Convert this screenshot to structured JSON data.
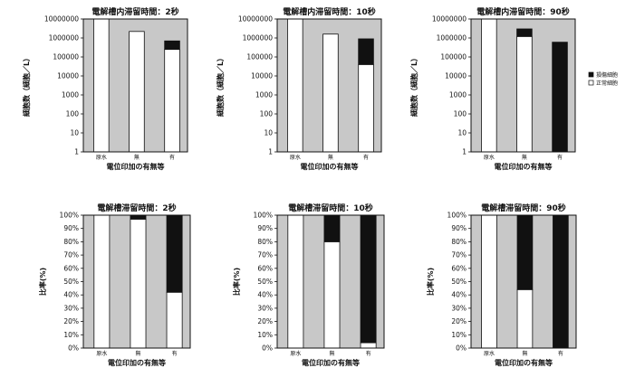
{
  "legend": {
    "damaged": "損傷細胞",
    "normal": "正常細胞",
    "colors": {
      "damaged": "#111111",
      "normal": "#ffffff",
      "background": "#c8c8c8"
    }
  },
  "chart_data": [
    {
      "type": "bar",
      "stacked": true,
      "yscale": "log",
      "title": "電解槽内滞留時間：2秒",
      "xlabel": "電位印加の有無等",
      "ylabel": "細胞数（細胞／L）",
      "categories": [
        "原水",
        "無",
        "有"
      ],
      "ylim": [
        1,
        10000000
      ],
      "yticks": [
        "1",
        "10",
        "100",
        "1000",
        "10000",
        "100000",
        "1000000",
        "10000000"
      ],
      "series": [
        {
          "name": "正常細胞",
          "values": [
            10000000,
            2200000,
            250000
          ]
        },
        {
          "name": "損傷細胞",
          "values": [
            0,
            0,
            450000
          ]
        }
      ]
    },
    {
      "type": "bar",
      "stacked": true,
      "yscale": "log",
      "title": "電解槽内滞留時間：10秒",
      "xlabel": "電位印加の有無等",
      "ylabel": "細胞数（細胞／L）",
      "categories": [
        "原水",
        "無",
        "有"
      ],
      "ylim": [
        1,
        10000000
      ],
      "yticks": [
        "1",
        "10",
        "100",
        "1000",
        "10000",
        "100000",
        "1000000",
        "10000000"
      ],
      "series": [
        {
          "name": "正常細胞",
          "values": [
            10000000,
            1600000,
            40000
          ]
        },
        {
          "name": "損傷細胞",
          "values": [
            0,
            0,
            860000
          ]
        }
      ]
    },
    {
      "type": "bar",
      "stacked": true,
      "yscale": "log",
      "title": "電解槽内滞留時間：90秒",
      "xlabel": "電位印加の有無等",
      "ylabel": "細胞数（細胞／L）",
      "categories": [
        "原水",
        "無",
        "有"
      ],
      "ylim": [
        1,
        10000000
      ],
      "yticks": [
        "1",
        "10",
        "100",
        "1000",
        "10000",
        "100000",
        "1000000",
        "10000000"
      ],
      "series": [
        {
          "name": "正常細胞",
          "values": [
            10000000,
            1200000,
            1
          ]
        },
        {
          "name": "損傷細胞",
          "values": [
            0,
            1800000,
            600000
          ]
        }
      ]
    },
    {
      "type": "bar",
      "stacked": true,
      "yscale": "linear",
      "title": "電解槽滞留時間：2秒",
      "xlabel": "電位印加の有無等",
      "ylabel": "比率(%)",
      "categories": [
        "原水",
        "無",
        "有"
      ],
      "ylim": [
        0,
        100
      ],
      "yticks": [
        "0%",
        "10%",
        "20%",
        "30%",
        "40%",
        "50%",
        "60%",
        "70%",
        "80%",
        "90%",
        "100%"
      ],
      "series": [
        {
          "name": "正常細胞",
          "values": [
            100,
            97,
            42
          ]
        },
        {
          "name": "損傷細胞",
          "values": [
            0,
            3,
            58
          ]
        }
      ]
    },
    {
      "type": "bar",
      "stacked": true,
      "yscale": "linear",
      "title": "電解槽滞留時間：10秒",
      "xlabel": "電位印加の有無等",
      "ylabel": "比率(%)",
      "categories": [
        "原水",
        "無",
        "有"
      ],
      "ylim": [
        0,
        100
      ],
      "yticks": [
        "0%",
        "10%",
        "20%",
        "30%",
        "40%",
        "50%",
        "60%",
        "70%",
        "80%",
        "90%",
        "100%"
      ],
      "series": [
        {
          "name": "正常細胞",
          "values": [
            100,
            80,
            4
          ]
        },
        {
          "name": "損傷細胞",
          "values": [
            0,
            20,
            96
          ]
        }
      ]
    },
    {
      "type": "bar",
      "stacked": true,
      "yscale": "linear",
      "title": "電解槽滞留時間：90秒",
      "xlabel": "電位印加の有無等",
      "ylabel": "比率(%)",
      "categories": [
        "原水",
        "無",
        "有"
      ],
      "ylim": [
        0,
        100
      ],
      "yticks": [
        "0%",
        "10%",
        "20%",
        "30%",
        "40%",
        "50%",
        "60%",
        "70%",
        "80%",
        "90%",
        "100%"
      ],
      "series": [
        {
          "name": "正常細胞",
          "values": [
            100,
            44,
            0
          ]
        },
        {
          "name": "損傷細胞",
          "values": [
            0,
            56,
            100
          ]
        }
      ]
    }
  ]
}
